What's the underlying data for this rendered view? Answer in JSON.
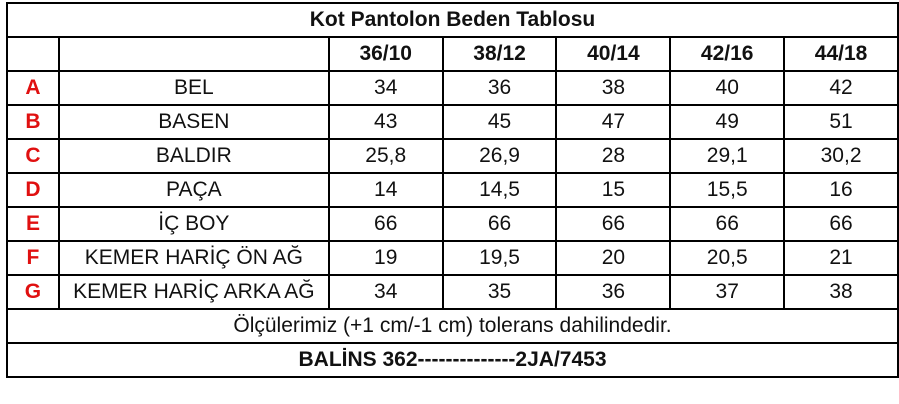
{
  "title": "Kot Pantolon Beden Tablosu",
  "sizes": [
    "36/10",
    "38/12",
    "40/14",
    "42/16",
    "44/18"
  ],
  "rows": [
    {
      "letter": "A",
      "name": "BEL",
      "values": [
        "34",
        "36",
        "38",
        "40",
        "42"
      ]
    },
    {
      "letter": "B",
      "name": "BASEN",
      "values": [
        "43",
        "45",
        "47",
        "49",
        "51"
      ]
    },
    {
      "letter": "C",
      "name": "BALDIR",
      "values": [
        "25,8",
        "26,9",
        "28",
        "29,1",
        "30,2"
      ]
    },
    {
      "letter": "D",
      "name": "PAÇA",
      "values": [
        "14",
        "14,5",
        "15",
        "15,5",
        "16"
      ]
    },
    {
      "letter": "E",
      "name": "İÇ BOY",
      "values": [
        "66",
        "66",
        "66",
        "66",
        "66"
      ]
    },
    {
      "letter": "F",
      "name": "KEMER HARİÇ ÖN AĞ",
      "values": [
        "19",
        "19,5",
        "20",
        "20,5",
        "21"
      ]
    },
    {
      "letter": "G",
      "name": "KEMER HARİÇ ARKA AĞ",
      "values": [
        "34",
        "35",
        "36",
        "37",
        "38"
      ]
    }
  ],
  "tolerance_note": "Ölçülerimiz (+1 cm/-1 cm) tolerans dahilindedir.",
  "footer_code": "BALİNS 362--------------2JA/7453",
  "colors": {
    "letter": "#e01010",
    "border": "#000000"
  }
}
